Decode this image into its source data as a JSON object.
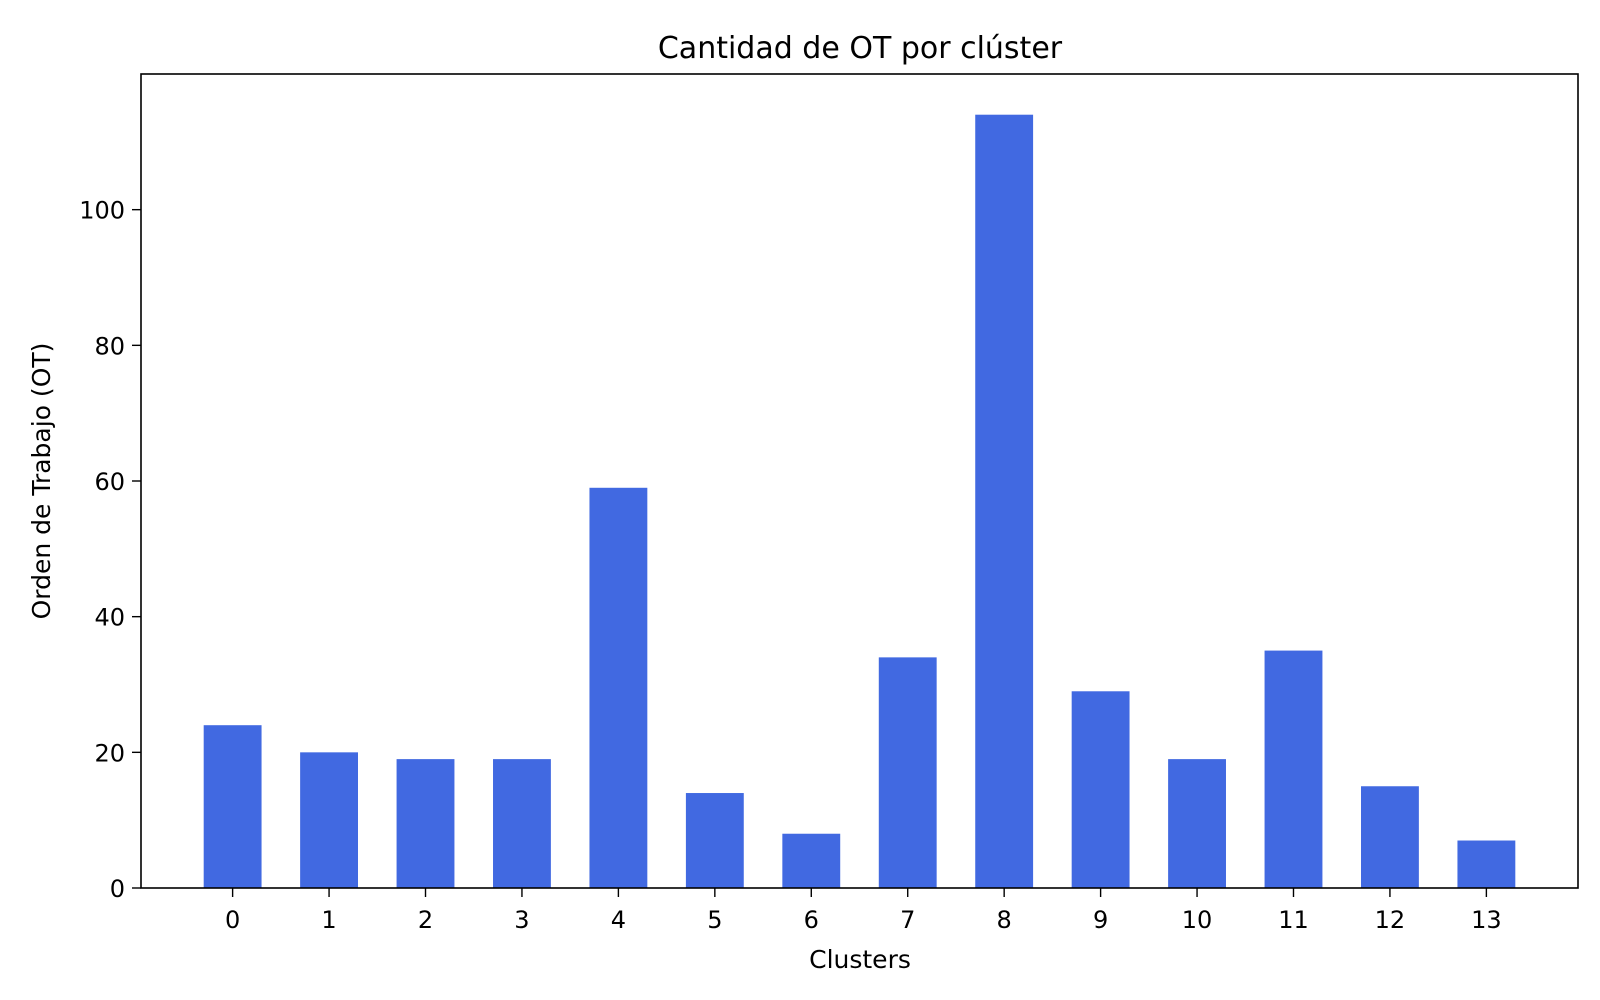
{
  "chart_data": {
    "type": "bar",
    "title": "Cantidad de OT por clúster",
    "xlabel": "Clusters",
    "ylabel": "Orden de Trabajo (OT)",
    "categories": [
      "0",
      "1",
      "2",
      "3",
      "4",
      "5",
      "6",
      "7",
      "8",
      "9",
      "10",
      "11",
      "12",
      "13"
    ],
    "values": [
      24,
      20,
      19,
      19,
      59,
      14,
      8,
      34,
      114,
      29,
      19,
      35,
      15,
      7
    ],
    "ylim": [
      0,
      120
    ],
    "yticks": [
      0,
      20,
      40,
      60,
      80,
      100
    ],
    "grid": false,
    "bar_color": "#4169E1"
  }
}
